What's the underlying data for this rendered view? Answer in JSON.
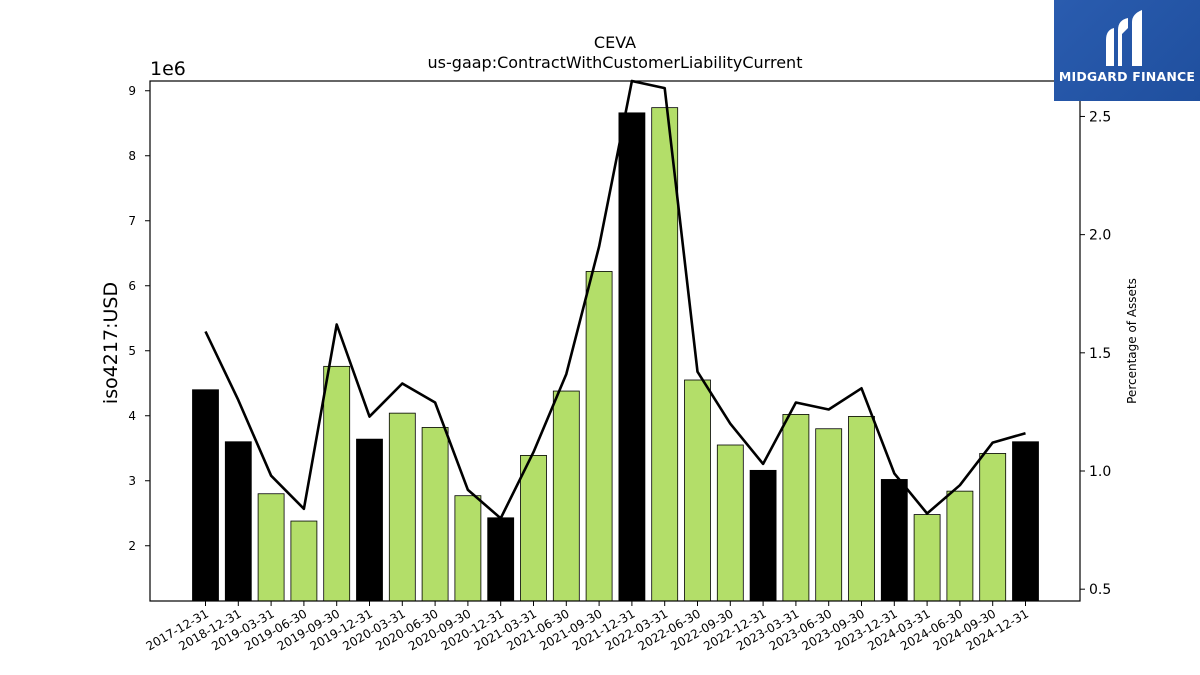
{
  "brand": {
    "name": "MIDGARD FINANCE"
  },
  "colors": {
    "bar_quarter": "#b3de69",
    "bar_annual": "#000000",
    "line": "#000000"
  },
  "chart_data": {
    "type": "bar",
    "title": "CEVA",
    "subtitle": "us-gaap:ContractWithCustomerLiabilityCurrent",
    "ylabel": "iso4217:USD",
    "y_offset_label": "1e6",
    "y2label": "Percentage of Assets",
    "ylim": [
      1.15,
      9.15
    ],
    "y2lim": [
      0.45,
      2.65
    ],
    "yticks": [
      2,
      3,
      4,
      5,
      6,
      7,
      8,
      9
    ],
    "y2ticks": [
      0.5,
      1.0,
      1.5,
      2.0,
      2.5
    ],
    "grid": false,
    "categories": [
      "2017-12-31",
      "2018-12-31",
      "2019-03-31",
      "2019-06-30",
      "2019-09-30",
      "2019-12-31",
      "2020-03-31",
      "2020-06-30",
      "2020-09-30",
      "2020-12-31",
      "2021-03-31",
      "2021-06-30",
      "2021-09-30",
      "2021-12-31",
      "2022-03-31",
      "2022-06-30",
      "2022-09-30",
      "2022-12-31",
      "2023-03-31",
      "2023-06-30",
      "2023-09-30",
      "2023-12-31",
      "2024-03-31",
      "2024-06-30",
      "2024-09-30",
      "2024-12-31"
    ],
    "series": [
      {
        "type": "bar",
        "values": [
          4.4,
          3.6,
          2.8,
          2.38,
          4.76,
          3.64,
          4.04,
          3.82,
          2.77,
          2.43,
          3.39,
          4.38,
          6.22,
          8.66,
          8.74,
          4.55,
          3.55,
          3.16,
          4.02,
          3.8,
          3.99,
          3.02,
          2.48,
          2.84,
          3.42,
          3.6
        ],
        "annual": [
          true,
          true,
          false,
          false,
          false,
          true,
          false,
          false,
          false,
          true,
          false,
          false,
          false,
          true,
          false,
          false,
          false,
          true,
          false,
          false,
          false,
          true,
          false,
          false,
          false,
          true
        ]
      },
      {
        "type": "line",
        "axis": "right",
        "values": [
          1.59,
          1.3,
          0.98,
          0.84,
          1.62,
          1.23,
          1.37,
          1.29,
          0.92,
          0.8,
          1.08,
          1.41,
          1.95,
          2.65,
          2.62,
          1.42,
          1.2,
          1.03,
          1.29,
          1.26,
          1.35,
          0.99,
          0.82,
          0.94,
          1.12,
          1.16
        ]
      }
    ]
  }
}
